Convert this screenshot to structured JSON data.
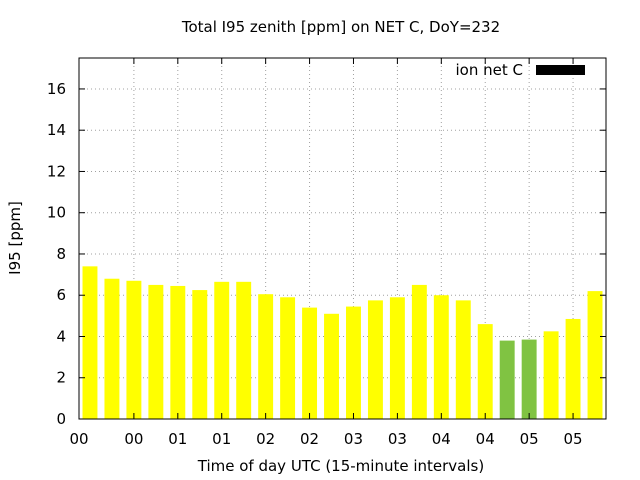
{
  "chart_data": {
    "type": "bar",
    "title": "Total I95 zenith [ppm] on NET C, DoY=232",
    "xlabel": "Time of day UTC (15-minute intervals)",
    "ylabel": "I95 [ppm]",
    "ylim": [
      0,
      17.5
    ],
    "yticks": [
      0,
      2,
      4,
      6,
      8,
      10,
      12,
      14,
      16
    ],
    "xtick_labels": [
      "00",
      "00",
      "01",
      "01",
      "02",
      "02",
      "03",
      "03",
      "04",
      "04",
      "05",
      "05"
    ],
    "grid": true,
    "legend": {
      "label": "ion net C",
      "color": "#000000",
      "position": "top-right"
    },
    "colors": {
      "normal": "#ffff00",
      "highlight": "#80c342"
    },
    "values": [
      7.4,
      6.8,
      6.7,
      6.5,
      6.45,
      6.25,
      6.65,
      6.65,
      6.05,
      5.9,
      5.4,
      5.1,
      5.45,
      5.75,
      5.9,
      6.5,
      6.0,
      5.75,
      4.6,
      3.8,
      3.85,
      4.25,
      4.85,
      6.2
    ],
    "highlighted": [
      false,
      false,
      false,
      false,
      false,
      false,
      false,
      false,
      false,
      false,
      false,
      false,
      false,
      false,
      false,
      false,
      false,
      false,
      false,
      true,
      true,
      false,
      false,
      false
    ]
  }
}
